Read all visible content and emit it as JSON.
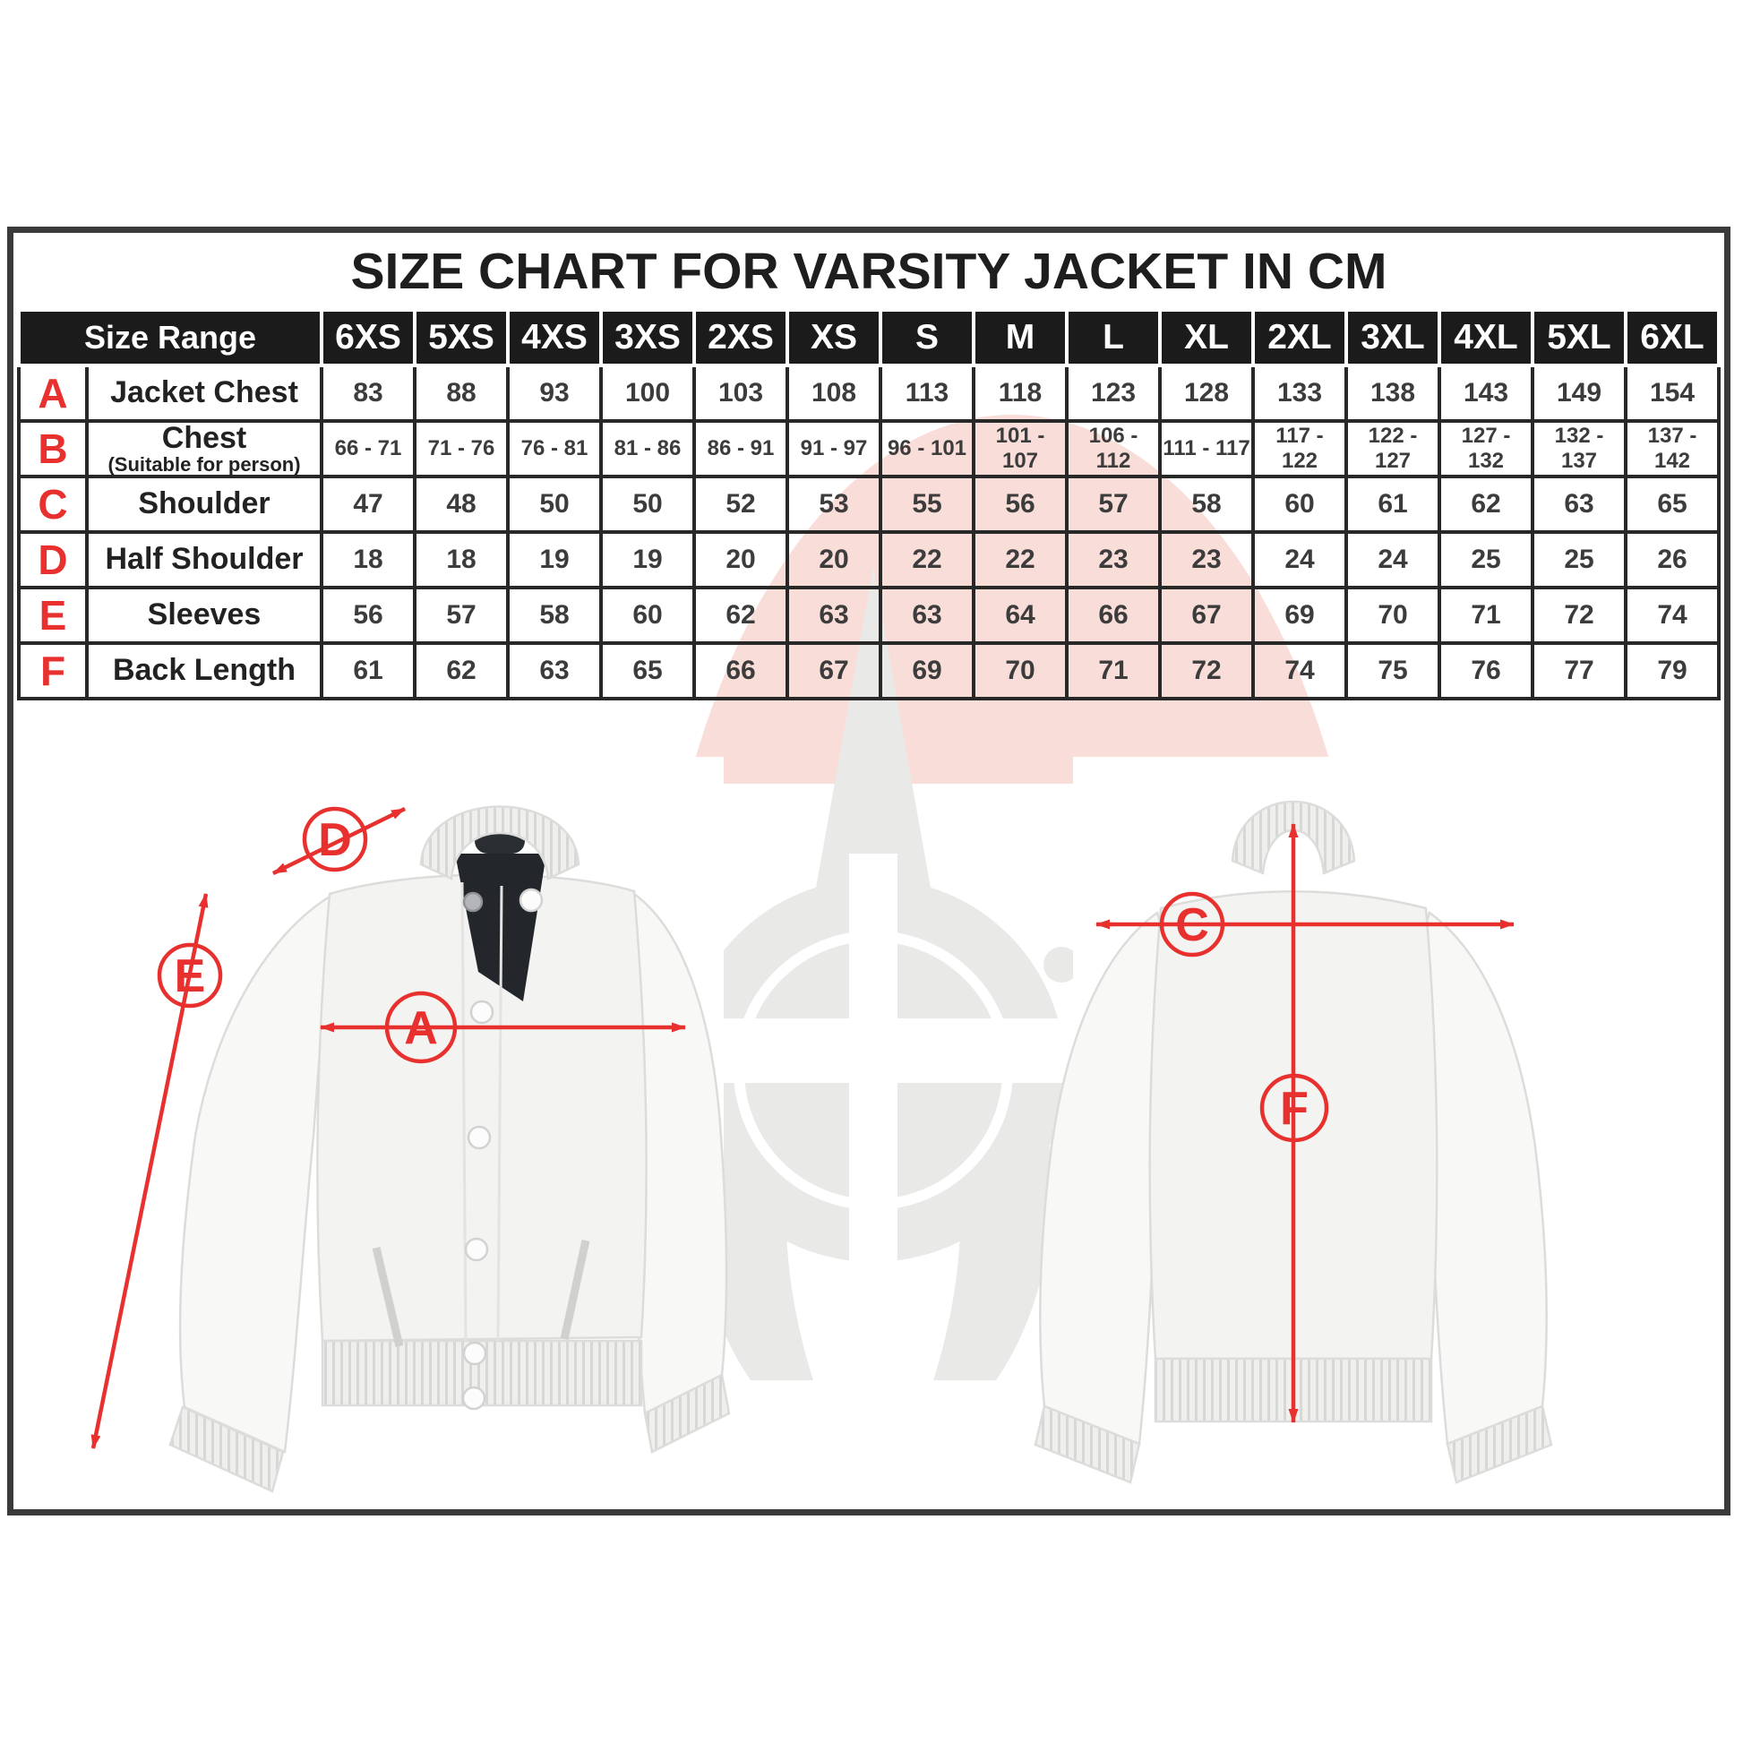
{
  "title": "SIZE CHART FOR VARSITY JACKET IN CM",
  "table": {
    "corner_label": "Size Range",
    "sizes": [
      "6XS",
      "5XS",
      "4XS",
      "3XS",
      "2XS",
      "XS",
      "S",
      "M",
      "L",
      "XL",
      "2XL",
      "3XL",
      "4XL",
      "5XL",
      "6XL"
    ],
    "rows": [
      {
        "letter": "A",
        "label": "Jacket Chest",
        "sublabel": "",
        "values": [
          "83",
          "88",
          "93",
          "100",
          "103",
          "108",
          "113",
          "118",
          "123",
          "128",
          "133",
          "138",
          "143",
          "149",
          "154"
        ]
      },
      {
        "letter": "B",
        "label": "Chest",
        "sublabel": "(Suitable for person)",
        "values": [
          "66 - 71",
          "71 - 76",
          "76 - 81",
          "81 - 86",
          "86 - 91",
          "91 - 97",
          "96 - 101",
          "101 - 107",
          "106 - 112",
          "111 - 117",
          "117 - 122",
          "122 - 127",
          "127 - 132",
          "132 - 137",
          "137 - 142"
        ]
      },
      {
        "letter": "C",
        "label": "Shoulder",
        "sublabel": "",
        "values": [
          "47",
          "48",
          "50",
          "50",
          "52",
          "53",
          "55",
          "56",
          "57",
          "58",
          "60",
          "61",
          "62",
          "63",
          "65"
        ]
      },
      {
        "letter": "D",
        "label": "Half Shoulder",
        "sublabel": "",
        "values": [
          "18",
          "18",
          "19",
          "19",
          "20",
          "20",
          "22",
          "22",
          "23",
          "23",
          "24",
          "24",
          "25",
          "25",
          "26"
        ]
      },
      {
        "letter": "E",
        "label": "Sleeves",
        "sublabel": "",
        "values": [
          "56",
          "57",
          "58",
          "60",
          "62",
          "63",
          "63",
          "64",
          "66",
          "67",
          "69",
          "70",
          "71",
          "72",
          "74"
        ]
      },
      {
        "letter": "F",
        "label": "Back Length",
        "sublabel": "",
        "values": [
          "61",
          "62",
          "63",
          "65",
          "66",
          "67",
          "69",
          "70",
          "71",
          "72",
          "74",
          "75",
          "76",
          "77",
          "79"
        ]
      }
    ]
  },
  "annotations": {
    "front": [
      "D",
      "E",
      "A"
    ],
    "back": [
      "C",
      "F"
    ]
  },
  "colors": {
    "accent_red": "#e8312e",
    "header_bg": "#1b1b1b",
    "header_text": "#ffffff",
    "grid_line": "#282828",
    "value_text": "#3c3c3c",
    "watermark_pink": "#f8ddd8",
    "watermark_gray": "#e9e9e8",
    "jacket_lining_dark": "#23262a"
  }
}
